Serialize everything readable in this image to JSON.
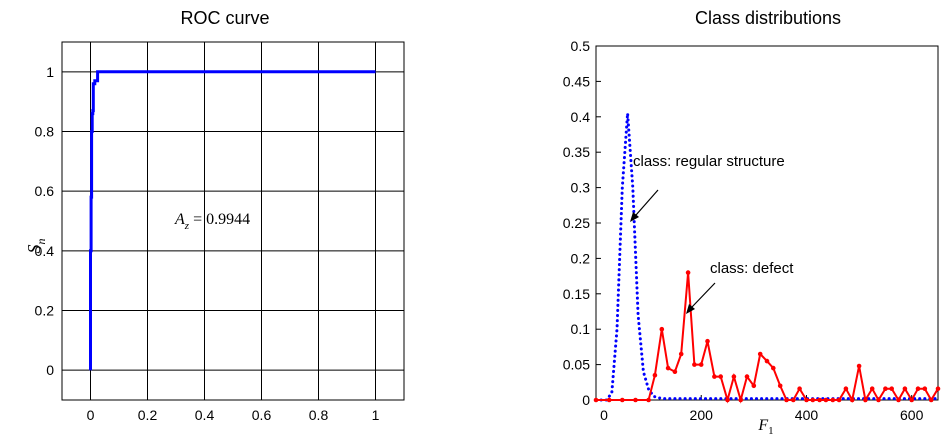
{
  "chart_data": [
    {
      "type": "line",
      "title": "ROC curve",
      "xlabel": "",
      "ylabel": "S_n",
      "ylabel_main": "S",
      "ylabel_sub": "n",
      "xlim": [
        -0.1,
        1.1
      ],
      "ylim": [
        -0.1,
        1.1
      ],
      "xticks": [
        0,
        0.2,
        0.4,
        0.6,
        0.8,
        1
      ],
      "xtick_labels": [
        "0",
        "0.2",
        "0.4",
        "0.6",
        "0.8",
        "1"
      ],
      "yticks": [
        0,
        0.2,
        0.4,
        0.6,
        0.8,
        1
      ],
      "ytick_labels": [
        "0",
        "0.2",
        "0.4",
        "0.6",
        "0.8",
        "1"
      ],
      "grid": true,
      "color": "#0000ff",
      "annotation": {
        "main": "A",
        "sub": "z",
        "rest": " = 0.9944"
      },
      "series": [
        {
          "x": [
            0,
            0,
            0.002,
            0.002,
            0.004,
            0.004,
            0.006,
            0.006,
            0.008,
            0.008,
            0.01,
            0.01,
            0.015,
            0.015,
            0.025,
            0.025,
            0.04,
            1.0
          ],
          "y": [
            0,
            0.4,
            0.4,
            0.58,
            0.58,
            0.8,
            0.8,
            0.86,
            0.86,
            0.87,
            0.87,
            0.96,
            0.96,
            0.97,
            0.97,
            1.0,
            1.0,
            1.0
          ]
        }
      ]
    },
    {
      "type": "line",
      "title": "Class distributions",
      "xlabel": "F_1",
      "xlabel_main": "F",
      "xlabel_sub": "1",
      "ylabel": "",
      "xlim": [
        0,
        650
      ],
      "ylim": [
        0,
        0.5
      ],
      "xticks": [
        0,
        200,
        400,
        600
      ],
      "xtick_labels": [
        "0",
        "200",
        "400",
        "600"
      ],
      "yticks": [
        0,
        0.05,
        0.1,
        0.15,
        0.2,
        0.25,
        0.3,
        0.35,
        0.4,
        0.45,
        0.5
      ],
      "ytick_labels": [
        "0",
        "0.05",
        "0.1",
        "0.15",
        "0.2",
        "0.25",
        "0.3",
        "0.35",
        "0.4",
        "0.45",
        "0.5"
      ],
      "grid": false,
      "series": [
        {
          "name": "class: regular structure",
          "color": "#0000ff",
          "style": "dotted",
          "x": [
            0,
            10,
            20,
            30,
            40,
            50,
            60,
            70,
            80,
            90,
            100,
            110,
            120,
            130,
            140,
            150,
            170,
            200,
            250,
            300,
            350,
            400,
            450,
            500,
            550,
            600,
            650
          ],
          "y": [
            0,
            0,
            0,
            0.01,
            0.1,
            0.3,
            0.405,
            0.3,
            0.12,
            0.04,
            0.015,
            0.005,
            0.003,
            0.002,
            0.002,
            0.002,
            0.002,
            0.002,
            0.002,
            0.002,
            0.002,
            0.002,
            0.002,
            0.002,
            0.002,
            0.002,
            0.002
          ]
        },
        {
          "name": "class: defect",
          "color": "#ff0000",
          "style": "solid",
          "x": [
            0,
            25,
            50,
            75,
            100,
            112,
            125,
            137,
            150,
            162,
            175,
            187,
            200,
            212,
            225,
            237,
            250,
            262,
            275,
            287,
            300,
            312,
            325,
            337,
            350,
            362,
            375,
            387,
            400,
            412,
            425,
            437,
            450,
            462,
            475,
            487,
            500,
            512,
            525,
            537,
            550,
            562,
            575,
            587,
            600,
            612,
            625,
            637,
            650
          ],
          "y": [
            0,
            0,
            0,
            0,
            0,
            0.035,
            0.1,
            0.045,
            0.04,
            0.065,
            0.18,
            0.05,
            0.05,
            0.083,
            0.033,
            0.033,
            0,
            0.033,
            0,
            0.033,
            0.02,
            0.065,
            0.055,
            0.045,
            0.02,
            0,
            0,
            0.016,
            0,
            0,
            0,
            0,
            0,
            0,
            0.016,
            0,
            0.048,
            0,
            0.016,
            0,
            0.016,
            0.016,
            0,
            0.016,
            0,
            0.016,
            0.016,
            0,
            0.016
          ]
        }
      ],
      "annotations": [
        {
          "text": "class: regular structure"
        },
        {
          "text": "class: defect"
        }
      ]
    }
  ]
}
